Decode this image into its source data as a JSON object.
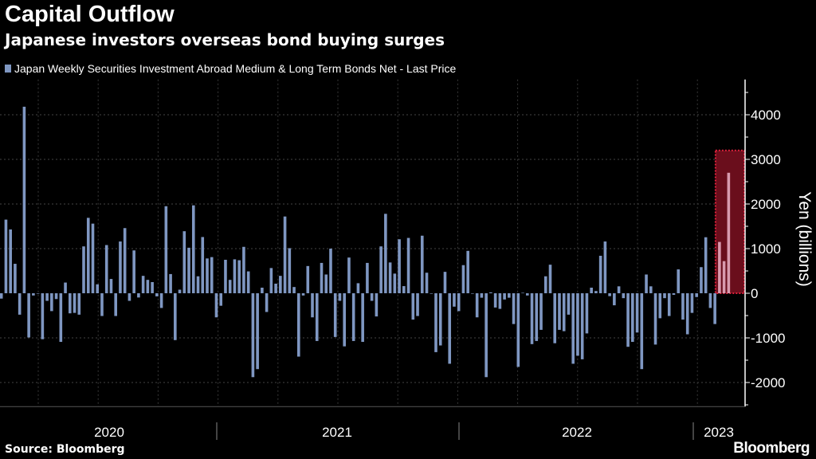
{
  "title": "Capital Outflow",
  "subtitle": "Japanese investors overseas bond buying surges",
  "source": "Source: Bloomberg",
  "logo": "Bloomberg",
  "chart_data": {
    "type": "bar",
    "legend": "Japan Weekly Securities Investment Abroad Medium & Long Term Bonds Net - Last Price",
    "legend_position": "top-left",
    "ylabel": "Yen (billions)",
    "ylim": [
      -2540,
      4790
    ],
    "yticks": [
      4000,
      3000,
      2000,
      1000,
      0,
      -1000,
      -2000
    ],
    "grid": true,
    "x_year_labels": [
      "2020",
      "2021",
      "2022",
      "2023"
    ],
    "frequency": "weekly",
    "series_color": "#7f97c2",
    "highlight": {
      "color": "#e0203c",
      "fill": "#6a0e1c",
      "last_n_bars": 3,
      "y_range": [
        0,
        3200
      ]
    },
    "values": [
      -120,
      1650,
      1430,
      660,
      -480,
      4180,
      -990,
      -50,
      -10,
      -1030,
      -170,
      -400,
      -130,
      -1090,
      240,
      -450,
      -440,
      -480,
      1050,
      1690,
      1560,
      200,
      -510,
      1080,
      320,
      -510,
      1160,
      1460,
      -170,
      960,
      -95,
      390,
      300,
      250,
      -70,
      -330,
      1950,
      430,
      -1050,
      80,
      1390,
      1020,
      1970,
      380,
      1260,
      780,
      810,
      -540,
      -280,
      750,
      300,
      760,
      740,
      1040,
      490,
      -1880,
      -1700,
      125,
      -420,
      565,
      215,
      390,
      1720,
      1010,
      140,
      -1420,
      -50,
      610,
      -540,
      -1070,
      680,
      420,
      1000,
      -980,
      -170,
      -1190,
      800,
      -1070,
      225,
      -1090,
      680,
      -170,
      -520,
      1050,
      1780,
      690,
      440,
      1210,
      160,
      1240,
      -590,
      -510,
      1290,
      460,
      0,
      -1320,
      -1170,
      480,
      -1580,
      -300,
      -400,
      630,
      950,
      -10,
      -540,
      -100,
      -1880,
      20,
      -320,
      -350,
      -140,
      -100,
      -690,
      -1650,
      10,
      -50,
      -1140,
      -1070,
      -820,
      380,
      640,
      -1120,
      -820,
      -850,
      -480,
      -1580,
      -1400,
      -1480,
      -900,
      125,
      50,
      840,
      1160,
      -65,
      -270,
      155,
      -110,
      -1200,
      -1090,
      -880,
      -1700,
      420,
      155,
      -1150,
      -560,
      -110,
      -510,
      -35,
      535,
      -590,
      -920,
      -440,
      -85,
      585,
      1255,
      -330,
      -690,
      1150,
      720,
      2700
    ]
  }
}
